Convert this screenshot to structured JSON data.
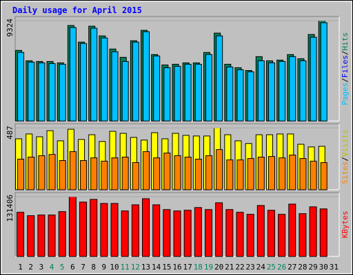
{
  "chart_data": [
    {
      "type": "bar",
      "title": "Daily usage for April 2015",
      "categories": [
        "1",
        "2",
        "3",
        "4",
        "5",
        "6",
        "7",
        "8",
        "9",
        "10",
        "11",
        "12",
        "13",
        "14",
        "15",
        "16",
        "17",
        "18",
        "19",
        "20",
        "21",
        "22",
        "23",
        "24",
        "25",
        "26",
        "27",
        "28",
        "29",
        "30",
        "31"
      ],
      "category_colors": [
        "#000000",
        "#000000",
        "#000000",
        "#00805c",
        "#00805c",
        "#000000",
        "#000000",
        "#000000",
        "#000000",
        "#000000",
        "#00805c",
        "#00805c",
        "#000000",
        "#000000",
        "#000000",
        "#000000",
        "#000000",
        "#00805c",
        "#00805c",
        "#000000",
        "#000000",
        "#000000",
        "#000000",
        "#000000",
        "#00805c",
        "#00805c",
        "#000000",
        "#000000",
        "#000000",
        "#000000",
        "#000000"
      ],
      "ylim": [
        0,
        9324
      ],
      "yticks": [
        9324
      ],
      "axis_label_parts": [
        {
          "text": "Pages",
          "color": "#00c0ff"
        },
        {
          "text": "/",
          "color": "#000000"
        },
        {
          "text": "Files",
          "color": "#0000ff"
        },
        {
          "text": "/",
          "color": "#000000"
        },
        {
          "text": "Hits",
          "color": "#00805c"
        }
      ],
      "series": [
        {
          "name": "Hits",
          "color": "#00805c",
          "values": [
            6559,
            5594,
            5530,
            5530,
            5401,
            8873,
            7330,
            8809,
            7909,
            6687,
            5916,
            7459,
            8423,
            6173,
            5208,
            5273,
            5401,
            5401,
            6366,
            8166,
            5273,
            4951,
            4694,
            5980,
            5594,
            5658,
            6173,
            5787,
            8038,
            9324,
            null
          ]
        },
        {
          "name": "Files",
          "color": "#00c0ff",
          "values": [
            6366,
            5466,
            5401,
            5337,
            5273,
            8681,
            7202,
            8616,
            7716,
            6430,
            5530,
            7330,
            8295,
            6044,
            4951,
            5080,
            5273,
            5273,
            6173,
            7909,
            5015,
            4758,
            4565,
            5594,
            5401,
            5530,
            5980,
            5594,
            7780,
            9131,
            null
          ]
        }
      ]
    },
    {
      "type": "bar",
      "ylim": [
        0,
        487
      ],
      "yticks": [
        487
      ],
      "axis_label_parts": [
        {
          "text": "Sites",
          "color": "#ff8000"
        },
        {
          "text": "/",
          "color": "#000000"
        },
        {
          "text": "Visits",
          "color": "#c0c000"
        }
      ],
      "series": [
        {
          "name": "Visits",
          "color": "#ffff00",
          "values": [
            401,
            439,
            417,
            465,
            385,
            476,
            396,
            433,
            380,
            460,
            444,
            412,
            391,
            449,
            401,
            444,
            428,
            423,
            423,
            487,
            433,
            385,
            364,
            433,
            433,
            439,
            439,
            358,
            337,
            342,
            null
          ]
        },
        {
          "name": "Sites",
          "color": "#ff8000",
          "values": [
            241,
            257,
            268,
            278,
            230,
            300,
            230,
            251,
            225,
            251,
            257,
            214,
            300,
            251,
            289,
            268,
            257,
            241,
            268,
            316,
            235,
            235,
            246,
            257,
            262,
            251,
            273,
            246,
            225,
            214,
            null
          ]
        }
      ]
    },
    {
      "type": "bar",
      "ylim": [
        0,
        131406
      ],
      "yticks": [
        131406
      ],
      "axis_label_parts": [
        {
          "text": "KBytes",
          "color": "#ff0000"
        }
      ],
      "series": [
        {
          "name": "KBytes",
          "color": "#ff0000",
          "values": [
            97045,
            89580,
            91073,
            91073,
            98538,
            131406,
            119440,
            125412,
            116454,
            116454,
            100031,
            113468,
            126905,
            113468,
            103017,
            100031,
            101524,
            107496,
            103017,
            117947,
            103017,
            97045,
            92566,
            111975,
            101524,
            92566,
            114961,
            94059,
            108989,
            104510,
            null
          ]
        }
      ]
    }
  ]
}
